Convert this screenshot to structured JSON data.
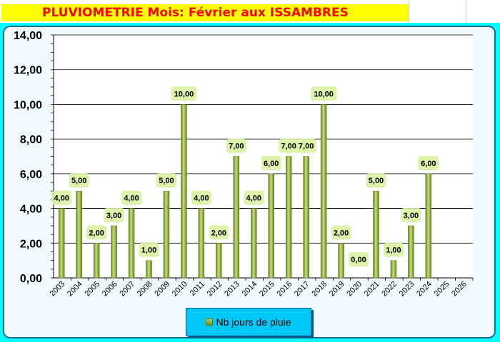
{
  "title": "PLUVIOMETRIE Mois: Février aux ISSAMBRES",
  "colors": {
    "bar": "#8fb03a",
    "bar_dark": "#5f7f1c",
    "label_bg": "#d9f2a2",
    "plot_bg": "#ffffff",
    "gridline": "#000000",
    "title_text": "#ff0000",
    "title_bg": "#ffff00"
  },
  "chart_data": {
    "type": "bar",
    "categories": [
      "2003",
      "2004",
      "2005",
      "2006",
      "2007",
      "2008",
      "2009",
      "2010",
      "2011",
      "2012",
      "2013",
      "2014",
      "2015",
      "2016",
      "2017",
      "2018",
      "2019",
      "2020",
      "2021",
      "2022",
      "2023",
      "2024",
      "2025",
      "2026"
    ],
    "series": [
      {
        "name": "Nb jours de pluie",
        "values": [
          4,
          5,
          2,
          3,
          4,
          1,
          5,
          10,
          4,
          2,
          7,
          4,
          6,
          7,
          7,
          10,
          2,
          0,
          5,
          1,
          3,
          6,
          null,
          null
        ],
        "labels": [
          "4,00",
          "5,00",
          "2,00",
          "3,00",
          "4,00",
          "1,00",
          "5,00",
          "10,00",
          "4,00",
          "2,00",
          "7,00",
          "4,00",
          "6,00",
          "7,00",
          "7,00",
          "10,00",
          "2,00",
          "0,00",
          "5,00",
          "1,00",
          "3,00",
          "6,00",
          "",
          ""
        ]
      }
    ],
    "yticks": [
      "0,00",
      "2,00",
      "4,00",
      "6,00",
      "8,00",
      "10,00",
      "12,00",
      "14,00"
    ],
    "ylim": [
      0,
      14
    ],
    "grid": true,
    "legend": "bottom"
  },
  "legend": {
    "label": "Nb jours de pluie"
  }
}
